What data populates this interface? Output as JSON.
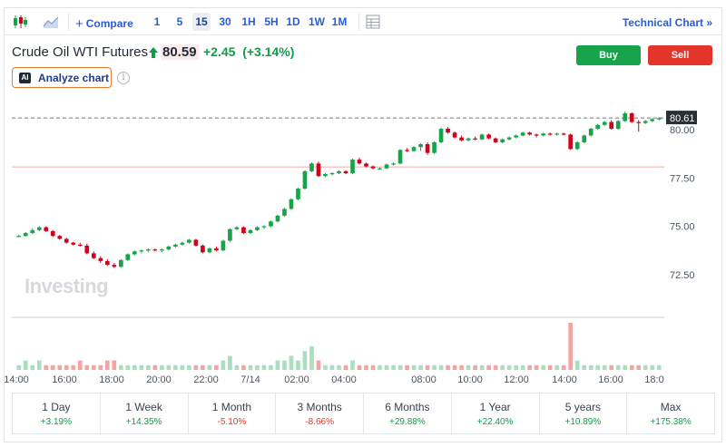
{
  "toolbar": {
    "compare_label": "Compare",
    "timeframes": [
      "1",
      "5",
      "15",
      "30",
      "1H",
      "5H",
      "1D",
      "1W",
      "1M"
    ],
    "active_timeframe": "15",
    "technical_chart_label": "Technical Chart »"
  },
  "instrument": {
    "name": "Crude Oil WTI Futures",
    "price": "80.59",
    "change": "+2.45",
    "change_pct": "(+3.14%)",
    "change_text": "+2.45  (+3.14%)"
  },
  "actions": {
    "buy_label": "Buy",
    "sell_label": "Sell"
  },
  "analyze": {
    "ai_badge": "AI",
    "label": "Analyze chart",
    "info_glyph": "i"
  },
  "watermark": "Investing",
  "colors": {
    "up": "#16a34a",
    "down": "#d0021b",
    "accent": "#2a5bd7",
    "buy": "#16a34a",
    "sell": "#e4352b"
  },
  "chart_data": {
    "type": "candlestick",
    "y_ticks": [
      "80.00",
      "77.50",
      "75.00",
      "72.50"
    ],
    "ylim": [
      70.8,
      81.6
    ],
    "x_ticks": [
      "14:00",
      "16:00",
      "18:00",
      "20:00",
      "22:00",
      "7/14",
      "02:00",
      "04:00",
      "08:00",
      "10:00",
      "12:00",
      "14:00",
      "16:00",
      "18:0"
    ],
    "current_price_label": "80.61",
    "current_price": 80.61,
    "reference_line": 78.07,
    "candles": [
      [
        74.5,
        74.55,
        74.45,
        74.5
      ],
      [
        74.5,
        74.7,
        74.45,
        74.65
      ],
      [
        74.65,
        74.9,
        74.6,
        74.8
      ],
      [
        74.8,
        75.0,
        74.75,
        74.95
      ],
      [
        74.95,
        75.0,
        74.7,
        74.75
      ],
      [
        74.75,
        74.8,
        74.45,
        74.5
      ],
      [
        74.5,
        74.55,
        74.3,
        74.35
      ],
      [
        74.35,
        74.4,
        74.1,
        74.15
      ],
      [
        74.15,
        74.2,
        74.0,
        74.05
      ],
      [
        74.05,
        74.15,
        73.95,
        74.0
      ],
      [
        74.0,
        74.1,
        73.55,
        73.6
      ],
      [
        73.6,
        73.7,
        73.3,
        73.35
      ],
      [
        73.35,
        73.45,
        73.1,
        73.2
      ],
      [
        73.2,
        73.3,
        72.95,
        73.0
      ],
      [
        73.0,
        73.1,
        72.85,
        72.9
      ],
      [
        72.9,
        73.3,
        72.85,
        73.25
      ],
      [
        73.25,
        73.6,
        73.2,
        73.55
      ],
      [
        73.55,
        73.75,
        73.5,
        73.7
      ],
      [
        73.7,
        73.8,
        73.6,
        73.75
      ],
      [
        73.75,
        73.85,
        73.65,
        73.8
      ],
      [
        73.8,
        73.85,
        73.7,
        73.75
      ],
      [
        73.75,
        73.85,
        73.65,
        73.8
      ],
      [
        73.8,
        74.0,
        73.75,
        73.95
      ],
      [
        73.95,
        74.1,
        73.9,
        74.05
      ],
      [
        74.05,
        74.2,
        74.0,
        74.15
      ],
      [
        74.15,
        74.35,
        74.1,
        74.3
      ],
      [
        74.3,
        74.35,
        73.95,
        74.0
      ],
      [
        74.0,
        74.05,
        73.6,
        73.65
      ],
      [
        73.65,
        73.9,
        73.6,
        73.85
      ],
      [
        73.85,
        73.95,
        73.7,
        73.75
      ],
      [
        73.75,
        74.3,
        73.7,
        74.25
      ],
      [
        74.25,
        74.9,
        74.2,
        74.85
      ],
      [
        74.85,
        75.0,
        74.8,
        74.95
      ],
      [
        74.95,
        75.0,
        74.6,
        74.65
      ],
      [
        74.65,
        74.85,
        74.6,
        74.8
      ],
      [
        74.8,
        75.0,
        74.75,
        74.95
      ],
      [
        74.95,
        75.05,
        74.85,
        75.0
      ],
      [
        75.0,
        75.3,
        74.95,
        75.25
      ],
      [
        75.25,
        75.6,
        75.2,
        75.55
      ],
      [
        75.55,
        75.95,
        75.5,
        75.9
      ],
      [
        75.9,
        76.45,
        75.85,
        76.4
      ],
      [
        76.4,
        77.0,
        76.35,
        76.95
      ],
      [
        76.95,
        77.9,
        76.9,
        77.85
      ],
      [
        77.85,
        78.3,
        77.8,
        78.25
      ],
      [
        78.25,
        78.35,
        77.55,
        77.6
      ],
      [
        77.6,
        77.75,
        77.55,
        77.7
      ],
      [
        77.7,
        77.8,
        77.65,
        77.75
      ],
      [
        77.75,
        77.9,
        77.7,
        77.85
      ],
      [
        77.85,
        77.9,
        77.7,
        77.75
      ],
      [
        77.75,
        78.5,
        77.7,
        78.45
      ],
      [
        78.45,
        78.55,
        78.2,
        78.25
      ],
      [
        78.25,
        78.3,
        78.05,
        78.1
      ],
      [
        78.1,
        78.15,
        77.95,
        78.0
      ],
      [
        78.0,
        78.05,
        77.95,
        78.0
      ],
      [
        78.0,
        78.25,
        77.95,
        78.2
      ],
      [
        78.2,
        78.3,
        78.15,
        78.25
      ],
      [
        78.25,
        79.0,
        78.2,
        78.95
      ],
      [
        78.95,
        79.05,
        78.85,
        78.9
      ],
      [
        78.9,
        79.15,
        78.85,
        79.1
      ],
      [
        79.1,
        79.3,
        78.9,
        79.25
      ],
      [
        79.25,
        79.35,
        78.7,
        78.8
      ],
      [
        78.8,
        79.4,
        78.75,
        79.35
      ],
      [
        79.35,
        80.1,
        79.3,
        80.05
      ],
      [
        80.05,
        80.15,
        79.8,
        79.85
      ],
      [
        79.85,
        79.9,
        79.55,
        79.6
      ],
      [
        79.6,
        79.7,
        79.4,
        79.45
      ],
      [
        79.45,
        79.6,
        79.4,
        79.55
      ],
      [
        79.55,
        79.65,
        79.45,
        79.5
      ],
      [
        79.5,
        79.8,
        79.45,
        79.75
      ],
      [
        79.75,
        79.8,
        79.5,
        79.55
      ],
      [
        79.55,
        79.6,
        79.3,
        79.35
      ],
      [
        79.35,
        79.55,
        79.3,
        79.5
      ],
      [
        79.5,
        79.65,
        79.45,
        79.6
      ],
      [
        79.6,
        79.75,
        79.55,
        79.7
      ],
      [
        79.7,
        79.9,
        79.65,
        79.85
      ],
      [
        79.85,
        79.9,
        79.7,
        79.75
      ],
      [
        79.75,
        79.8,
        79.6,
        79.7
      ],
      [
        79.7,
        79.85,
        79.65,
        79.8
      ],
      [
        79.8,
        79.85,
        79.7,
        79.75
      ],
      [
        79.75,
        79.85,
        79.7,
        79.8
      ],
      [
        79.8,
        79.85,
        79.7,
        79.75
      ],
      [
        79.75,
        79.8,
        78.95,
        79.0
      ],
      [
        79.0,
        79.4,
        78.95,
        79.35
      ],
      [
        79.35,
        79.75,
        79.3,
        79.7
      ],
      [
        79.7,
        80.1,
        79.65,
        80.05
      ],
      [
        80.05,
        80.3,
        80.0,
        80.25
      ],
      [
        80.25,
        80.45,
        80.2,
        80.4
      ],
      [
        80.4,
        80.5,
        80.0,
        80.05
      ],
      [
        80.05,
        80.5,
        80.0,
        80.45
      ],
      [
        80.45,
        80.95,
        80.4,
        80.85
      ],
      [
        80.85,
        80.9,
        80.35,
        80.4
      ],
      [
        80.4,
        80.5,
        79.9,
        80.35
      ],
      [
        80.35,
        80.5,
        80.3,
        80.45
      ],
      [
        80.45,
        80.6,
        80.4,
        80.55
      ],
      [
        80.55,
        80.65,
        80.5,
        80.59
      ]
    ],
    "volumes": [
      1,
      2,
      1,
      2,
      1,
      1,
      1,
      1,
      1,
      2,
      1,
      1,
      1,
      2,
      2,
      1,
      1,
      1,
      1,
      1,
      1,
      1,
      1,
      1,
      1,
      1,
      1,
      1,
      1,
      1,
      2,
      3,
      1,
      1,
      1,
      1,
      1,
      1,
      2,
      2,
      3,
      2,
      4,
      5,
      2,
      1,
      1,
      1,
      1,
      2,
      1,
      1,
      1,
      1,
      1,
      1,
      1,
      1,
      1,
      1,
      1,
      1,
      1,
      1,
      1,
      1,
      1,
      1,
      1,
      1,
      1,
      1,
      1,
      1,
      1,
      1,
      1,
      1,
      1,
      1,
      1,
      10,
      2,
      1,
      1,
      1,
      1,
      1,
      1,
      1,
      1,
      1,
      1,
      1,
      1
    ]
  },
  "periods": [
    {
      "label": "1 Day",
      "value": "+3.19%",
      "dir": "pos"
    },
    {
      "label": "1 Week",
      "value": "+14.35%",
      "dir": "pos"
    },
    {
      "label": "1 Month",
      "value": "-5.10%",
      "dir": "neg"
    },
    {
      "label": "3 Months",
      "value": "-8.66%",
      "dir": "neg"
    },
    {
      "label": "6 Months",
      "value": "+29.88%",
      "dir": "pos"
    },
    {
      "label": "1 Year",
      "value": "+22.40%",
      "dir": "pos"
    },
    {
      "label": "5 years",
      "value": "+10.89%",
      "dir": "pos"
    },
    {
      "label": "Max",
      "value": "+175.38%",
      "dir": "pos"
    }
  ]
}
